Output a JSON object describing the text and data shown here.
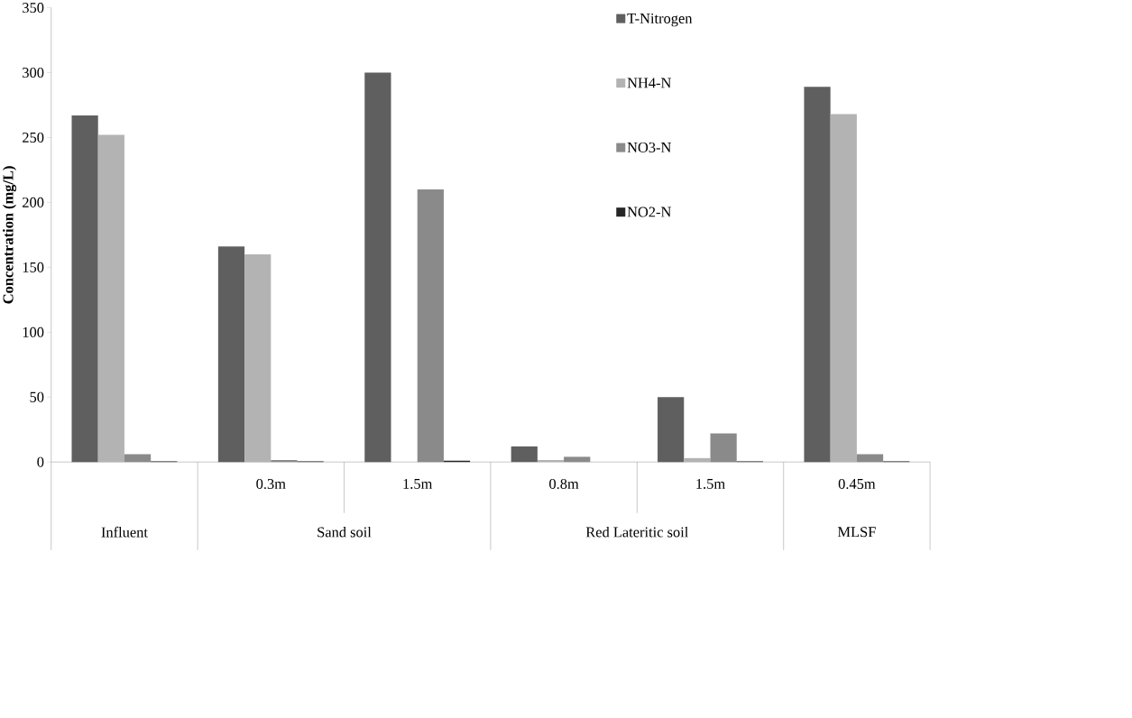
{
  "chart_data": {
    "type": "bar",
    "ylabel": "Concentration (mg/L)",
    "categories": [
      null,
      "0.3m",
      "1.5m",
      "0.8m",
      "1.5m",
      "0.45m"
    ],
    "annotations": [
      "Influent",
      "Sand soil",
      "Red Lateritic soil",
      "MLSF"
    ],
    "series": [
      {
        "name": "T-Nitrogen",
        "color": "#5f5f5f",
        "values": [
          267,
          166,
          300,
          12,
          50,
          289
        ]
      },
      {
        "name": "NH4-N",
        "color": "#b3b3b3",
        "values": [
          252,
          160,
          0,
          1.5,
          3,
          268
        ]
      },
      {
        "name": "NO3-N",
        "color": "#8a8a8a",
        "values": [
          6,
          1.5,
          210,
          4,
          22,
          6
        ]
      },
      {
        "name": "NO2-N",
        "color": "#262626",
        "values": [
          0.5,
          0.5,
          1,
          null,
          0.5,
          0.5
        ]
      }
    ],
    "ylim": [
      0,
      350
    ],
    "yticks": [
      0,
      50,
      100,
      150,
      200,
      250,
      300,
      350
    ],
    "grid": false,
    "legend": "top right"
  }
}
